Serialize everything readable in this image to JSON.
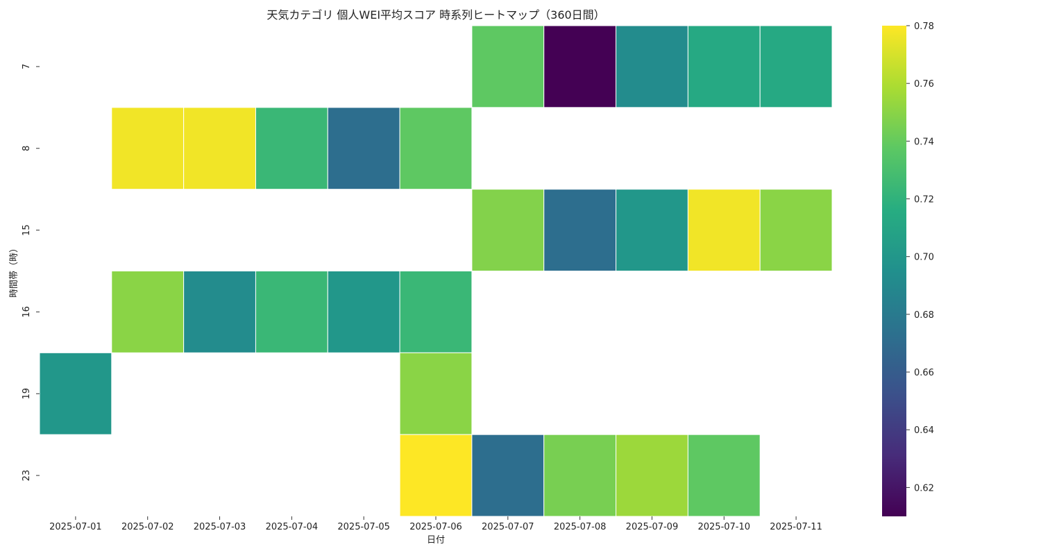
{
  "chart_data": {
    "type": "heatmap",
    "title": "天気カテゴリ 個人WEI平均スコア 時系列ヒートマップ（360日間）",
    "xlabel": "日付",
    "ylabel": "時間帯（時）",
    "x": [
      "2025-07-01",
      "2025-07-02",
      "2025-07-03",
      "2025-07-04",
      "2025-07-05",
      "2025-07-06",
      "2025-07-07",
      "2025-07-08",
      "2025-07-09",
      "2025-07-10",
      "2025-07-11"
    ],
    "y": [
      "7",
      "8",
      "15",
      "16",
      "19",
      "23"
    ],
    "values": [
      [
        null,
        null,
        null,
        null,
        null,
        null,
        0.738,
        0.61,
        0.692,
        0.713,
        0.713
      ],
      [
        null,
        0.777,
        0.777,
        0.724,
        0.672,
        0.738,
        null,
        null,
        null,
        null,
        null
      ],
      [
        null,
        null,
        null,
        null,
        null,
        null,
        0.748,
        0.672,
        0.7,
        0.777,
        0.75
      ],
      [
        null,
        0.75,
        0.692,
        0.724,
        0.7,
        0.724,
        null,
        null,
        null,
        null,
        null
      ],
      [
        0.7,
        null,
        null,
        null,
        null,
        0.75,
        null,
        null,
        null,
        null,
        null
      ],
      [
        null,
        null,
        null,
        null,
        null,
        0.78,
        0.672,
        0.745,
        0.755,
        0.738,
        null
      ]
    ],
    "colorscale": "viridis",
    "vmin": 0.61,
    "vmax": 0.78,
    "colorbar_ticks": [
      "0.62",
      "0.64",
      "0.66",
      "0.68",
      "0.70",
      "0.72",
      "0.74",
      "0.76",
      "0.78"
    ],
    "grid": false,
    "legend": "colorbar-right"
  }
}
